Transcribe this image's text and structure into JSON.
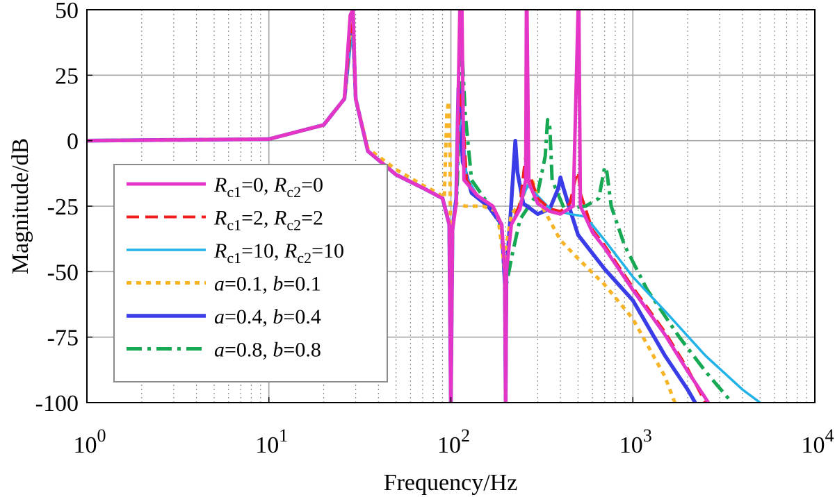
{
  "chart_data": {
    "type": "line",
    "title": "",
    "xlabel": "Frequency/Hz",
    "ylabel": "Magnitude/dB",
    "xscale": "log",
    "xlim": [
      1,
      10000
    ],
    "ylim": [
      -100,
      50
    ],
    "grid": true,
    "legend_position": "center-left",
    "x_ticks": [
      {
        "base": "10",
        "exp": "0"
      },
      {
        "base": "10",
        "exp": "1"
      },
      {
        "base": "10",
        "exp": "2"
      },
      {
        "base": "10",
        "exp": "3"
      },
      {
        "base": "10",
        "exp": "4"
      }
    ],
    "y_ticks": [
      "50",
      "25",
      "0",
      "-25",
      "-50",
      "-75",
      "-100"
    ],
    "series": [
      {
        "name": "Rc1=0, Rc2=0",
        "legend": [
          {
            "t": "R",
            "i": true
          },
          {
            "t": "c1",
            "sub": true
          },
          {
            "t": "=0, "
          },
          {
            "t": "R",
            "i": true
          },
          {
            "t": "c2",
            "sub": true
          },
          {
            "t": "=0"
          }
        ],
        "color": "#e535c7",
        "width": 5,
        "dash": "",
        "points": [
          [
            1,
            0
          ],
          [
            10,
            0.6
          ],
          [
            20,
            6
          ],
          [
            26,
            16
          ],
          [
            28,
            48
          ],
          [
            29,
            50
          ],
          [
            30,
            16
          ],
          [
            35,
            -4
          ],
          [
            50,
            -13
          ],
          [
            70,
            -18
          ],
          [
            90,
            -22
          ],
          [
            98,
            -32
          ],
          [
            100,
            -100
          ],
          [
            102,
            -34
          ],
          [
            107,
            -24
          ],
          [
            112,
            50
          ],
          [
            115,
            50
          ],
          [
            118,
            -15
          ],
          [
            140,
            -21
          ],
          [
            170,
            -25
          ],
          [
            190,
            -32
          ],
          [
            198,
            -50
          ],
          [
            200,
            -100
          ],
          [
            202,
            -50
          ],
          [
            215,
            -32
          ],
          [
            240,
            -26
          ],
          [
            258,
            -15
          ],
          [
            260,
            50
          ],
          [
            262,
            50
          ],
          [
            268,
            -16
          ],
          [
            300,
            -24
          ],
          [
            350,
            -27
          ],
          [
            400,
            -28
          ],
          [
            470,
            -25
          ],
          [
            500,
            50
          ],
          [
            505,
            50
          ],
          [
            515,
            -25
          ],
          [
            600,
            -35
          ],
          [
            700,
            -41
          ],
          [
            1000,
            -57
          ],
          [
            1500,
            -74
          ],
          [
            2000,
            -88
          ],
          [
            2600,
            -100
          ]
        ]
      },
      {
        "name": "Rc1=2, Rc2=2",
        "legend": [
          {
            "t": "R",
            "i": true
          },
          {
            "t": "c1",
            "sub": true
          },
          {
            "t": "=2, "
          },
          {
            "t": "R",
            "i": true
          },
          {
            "t": "c2",
            "sub": true
          },
          {
            "t": "=2"
          }
        ],
        "color": "#f21d1d",
        "width": 4,
        "dash": "18 9",
        "points": [
          [
            1,
            0
          ],
          [
            10,
            0.6
          ],
          [
            20,
            6
          ],
          [
            26,
            16
          ],
          [
            28,
            40
          ],
          [
            29,
            45
          ],
          [
            30,
            16
          ],
          [
            35,
            -4
          ],
          [
            50,
            -13
          ],
          [
            70,
            -18
          ],
          [
            90,
            -22
          ],
          [
            98,
            -32
          ],
          [
            100,
            -100
          ],
          [
            102,
            -34
          ],
          [
            107,
            -24
          ],
          [
            112,
            18
          ],
          [
            116,
            12
          ],
          [
            122,
            -15
          ],
          [
            140,
            -21
          ],
          [
            170,
            -25
          ],
          [
            190,
            -32
          ],
          [
            198,
            -50
          ],
          [
            200,
            -100
          ],
          [
            202,
            -50
          ],
          [
            215,
            -32
          ],
          [
            240,
            -24
          ],
          [
            255,
            -8
          ],
          [
            260,
            -4
          ],
          [
            268,
            -12
          ],
          [
            300,
            -22
          ],
          [
            350,
            -26
          ],
          [
            400,
            -27
          ],
          [
            450,
            -24
          ],
          [
            490,
            -13
          ],
          [
            500,
            -12
          ],
          [
            515,
            -20
          ],
          [
            600,
            -34
          ],
          [
            700,
            -40
          ],
          [
            1000,
            -56
          ],
          [
            1500,
            -73
          ],
          [
            2000,
            -87
          ],
          [
            2500,
            -100
          ]
        ]
      },
      {
        "name": "Rc1=10, Rc2=10",
        "legend": [
          {
            "t": "R",
            "i": true
          },
          {
            "t": "c1",
            "sub": true
          },
          {
            "t": "=10, "
          },
          {
            "t": "R",
            "i": true
          },
          {
            "t": "c2",
            "sub": true
          },
          {
            "t": "=10"
          }
        ],
        "color": "#21b2e8",
        "width": 3.5,
        "dash": "",
        "points": [
          [
            1,
            0
          ],
          [
            10,
            0.6
          ],
          [
            20,
            6
          ],
          [
            26,
            16
          ],
          [
            28,
            36
          ],
          [
            29,
            40
          ],
          [
            30,
            16
          ],
          [
            35,
            -4
          ],
          [
            50,
            -13
          ],
          [
            70,
            -18
          ],
          [
            90,
            -22
          ],
          [
            98,
            -32
          ],
          [
            100,
            -100
          ],
          [
            102,
            -34
          ],
          [
            107,
            -22
          ],
          [
            112,
            8
          ],
          [
            116,
            6
          ],
          [
            122,
            -14
          ],
          [
            140,
            -21
          ],
          [
            170,
            -25
          ],
          [
            190,
            -32
          ],
          [
            198,
            -50
          ],
          [
            200,
            -100
          ],
          [
            202,
            -50
          ],
          [
            215,
            -32
          ],
          [
            240,
            -24
          ],
          [
            265,
            -17
          ],
          [
            290,
            -20
          ],
          [
            350,
            -26
          ],
          [
            450,
            -28
          ],
          [
            550,
            -29
          ],
          [
            700,
            -38
          ],
          [
            1000,
            -52
          ],
          [
            1500,
            -65
          ],
          [
            2500,
            -82
          ],
          [
            4000,
            -95
          ],
          [
            5000,
            -100
          ]
        ]
      },
      {
        "name": "a=0.1, b=0.1",
        "legend": [
          {
            "t": "a",
            "i": true
          },
          {
            "t": "=0.1, "
          },
          {
            "t": "b",
            "i": true
          },
          {
            "t": "=0.1"
          }
        ],
        "color": "#f7b427",
        "width": 5,
        "dash": "7 7",
        "points": [
          [
            1,
            0
          ],
          [
            10,
            0.6
          ],
          [
            20,
            6
          ],
          [
            26,
            16
          ],
          [
            28,
            38
          ],
          [
            29,
            44
          ],
          [
            30,
            16
          ],
          [
            35,
            -3
          ],
          [
            50,
            -11
          ],
          [
            70,
            -17
          ],
          [
            85,
            -20
          ],
          [
            92,
            -22
          ],
          [
            95,
            10
          ],
          [
            97,
            15
          ],
          [
            99,
            -5
          ],
          [
            100,
            -100
          ],
          [
            102,
            -34
          ],
          [
            107,
            -24
          ],
          [
            120,
            -25
          ],
          [
            150,
            -25
          ],
          [
            180,
            -27
          ],
          [
            198,
            -50
          ],
          [
            200,
            -100
          ],
          [
            202,
            -40
          ],
          [
            215,
            -28
          ],
          [
            240,
            -24
          ],
          [
            260,
            -18
          ],
          [
            280,
            -15
          ],
          [
            300,
            -22
          ],
          [
            400,
            -38
          ],
          [
            500,
            -45
          ],
          [
            700,
            -55
          ],
          [
            1000,
            -68
          ],
          [
            1500,
            -90
          ],
          [
            1700,
            -100
          ]
        ]
      },
      {
        "name": "a=0.4, b=0.4",
        "legend": [
          {
            "t": "a",
            "i": true
          },
          {
            "t": "=0.4, "
          },
          {
            "t": "b",
            "i": true
          },
          {
            "t": "=0.4"
          }
        ],
        "color": "#3a3ce8",
        "width": 5.5,
        "dash": "",
        "points": [
          [
            1,
            0
          ],
          [
            10,
            0.6
          ],
          [
            20,
            6
          ],
          [
            26,
            16
          ],
          [
            28,
            38
          ],
          [
            29,
            43
          ],
          [
            30,
            16
          ],
          [
            35,
            -4
          ],
          [
            50,
            -13
          ],
          [
            70,
            -18
          ],
          [
            90,
            -22
          ],
          [
            98,
            -32
          ],
          [
            100,
            -100
          ],
          [
            102,
            -34
          ],
          [
            107,
            -22
          ],
          [
            110,
            20
          ],
          [
            112,
            18
          ],
          [
            116,
            -8
          ],
          [
            130,
            -20
          ],
          [
            160,
            -25
          ],
          [
            190,
            -32
          ],
          [
            198,
            -55
          ],
          [
            200,
            -100
          ],
          [
            202,
            -50
          ],
          [
            212,
            -30
          ],
          [
            222,
            -8
          ],
          [
            226,
            0
          ],
          [
            232,
            -12
          ],
          [
            250,
            -24
          ],
          [
            300,
            -28
          ],
          [
            350,
            -26
          ],
          [
            390,
            -18
          ],
          [
            400,
            -14
          ],
          [
            415,
            -18
          ],
          [
            450,
            -26
          ],
          [
            500,
            -36
          ],
          [
            700,
            -49
          ],
          [
            1000,
            -61
          ],
          [
            1500,
            -82
          ],
          [
            2000,
            -95
          ],
          [
            2200,
            -100
          ]
        ]
      },
      {
        "name": "a=0.8, b=0.8",
        "legend": [
          {
            "t": "a",
            "i": true
          },
          {
            "t": "=0.8, "
          },
          {
            "t": "b",
            "i": true
          },
          {
            "t": "=0.8"
          }
        ],
        "color": "#17a854",
        "width": 5,
        "dash": "22 8 5 8",
        "points": [
          [
            1,
            0
          ],
          [
            10,
            0.6
          ],
          [
            20,
            6
          ],
          [
            26,
            16
          ],
          [
            28,
            46
          ],
          [
            29,
            50
          ],
          [
            30,
            16
          ],
          [
            35,
            -4
          ],
          [
            50,
            -13
          ],
          [
            70,
            -18
          ],
          [
            90,
            -22
          ],
          [
            98,
            -32
          ],
          [
            100,
            -100
          ],
          [
            102,
            -34
          ],
          [
            108,
            -20
          ],
          [
            115,
            35
          ],
          [
            120,
            10
          ],
          [
            130,
            -15
          ],
          [
            160,
            -24
          ],
          [
            190,
            -33
          ],
          [
            198,
            -55
          ],
          [
            200,
            -100
          ],
          [
            202,
            -55
          ],
          [
            215,
            -45
          ],
          [
            240,
            -30
          ],
          [
            300,
            -20
          ],
          [
            330,
            -6
          ],
          [
            340,
            8
          ],
          [
            350,
            5
          ],
          [
            360,
            -15
          ],
          [
            420,
            -26
          ],
          [
            550,
            -25
          ],
          [
            650,
            -22
          ],
          [
            700,
            -10
          ],
          [
            720,
            -12
          ],
          [
            760,
            -25
          ],
          [
            900,
            -40
          ],
          [
            1200,
            -57
          ],
          [
            1800,
            -75
          ],
          [
            2500,
            -88
          ],
          [
            3500,
            -100
          ]
        ]
      }
    ]
  }
}
